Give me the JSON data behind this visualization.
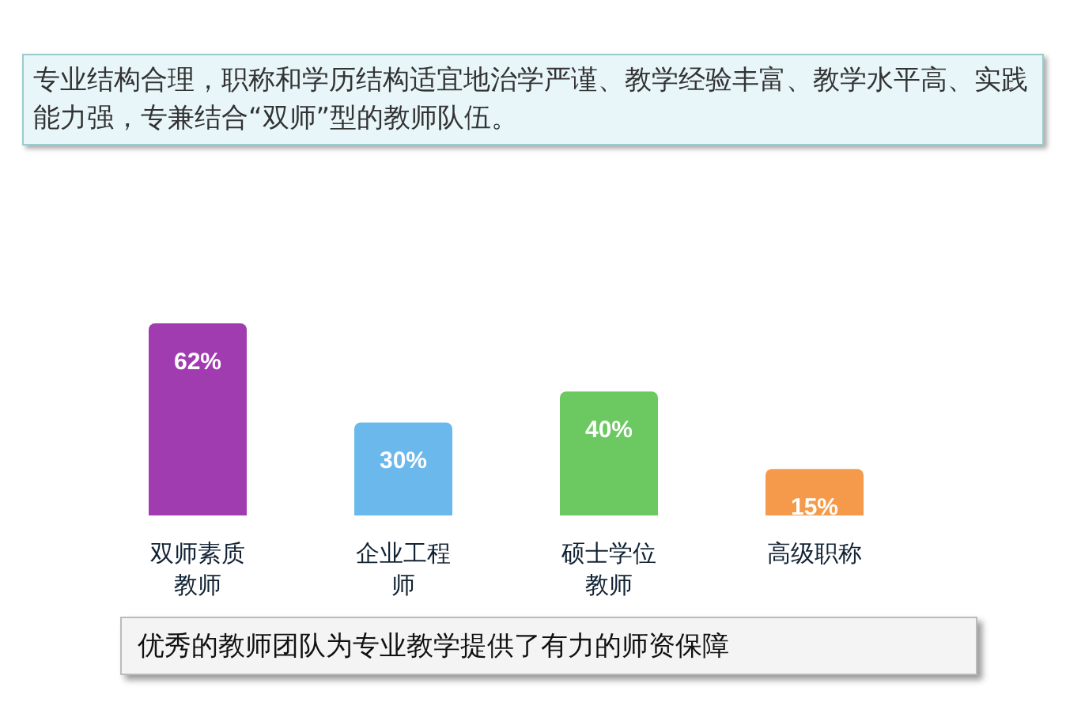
{
  "chart_data": {
    "type": "bar",
    "title": "专业结构合理，职称和学历结构适宜地治学严谨、教学经验丰富、教学水平高、实践能力强，专兼结合“双师”型的教师队伍。",
    "categories": [
      "双师素质教师",
      "企业工程师",
      "硕士学位教师",
      "高级职称"
    ],
    "values": [
      62,
      30,
      40,
      15
    ],
    "value_labels": [
      "62%",
      "30%",
      "40%",
      "15%"
    ],
    "colors": [
      "#a03cb0",
      "#6ab8ec",
      "#6cc860",
      "#f59a4a"
    ],
    "annotations": [
      "优秀的教师团队为专业教学提供了有力的师资保障"
    ]
  }
}
